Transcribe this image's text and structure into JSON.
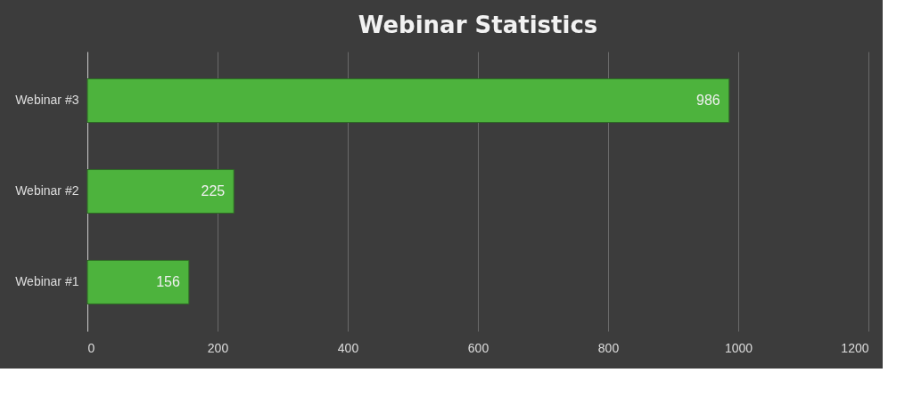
{
  "chart_data": {
    "type": "bar",
    "orientation": "horizontal",
    "title": "Webinar Statistics",
    "categories": [
      "Webinar #3",
      "Webinar #2",
      "Webinar #1"
    ],
    "values": [
      986,
      225,
      156
    ],
    "color": "#4db33d",
    "xlim": [
      0,
      1200
    ],
    "xticks": [
      0,
      200,
      400,
      600,
      800,
      1000,
      1200
    ],
    "grid": "x",
    "data_labels": true
  }
}
